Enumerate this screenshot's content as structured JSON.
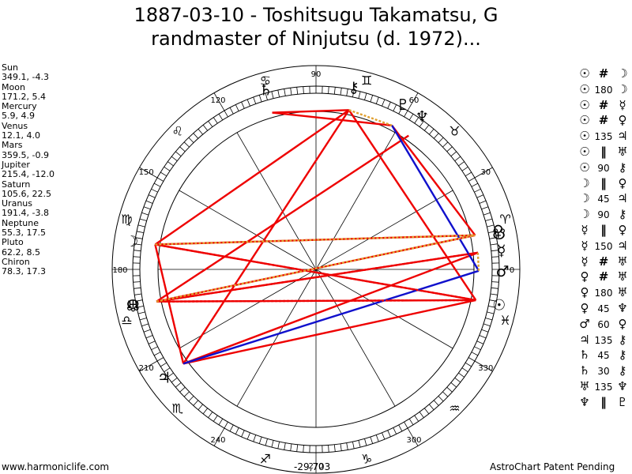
{
  "title": {
    "line1": "1887-03-10 - Toshitsugu Takamatsu, G",
    "line2": "randmaster of Ninjutsu (d. 1972)..."
  },
  "planets": [
    {
      "name": "Sun",
      "pos": "349.1, -4.3"
    },
    {
      "name": "Moon",
      "pos": "171.2, 5.4"
    },
    {
      "name": "Mercury",
      "pos": "5.9, 4.9"
    },
    {
      "name": "Venus",
      "pos": "12.1, 4.0"
    },
    {
      "name": "Mars",
      "pos": "359.5, -0.9"
    },
    {
      "name": "Jupiter",
      "pos": "215.4, -12.0"
    },
    {
      "name": "Saturn",
      "pos": "105.6, 22.5"
    },
    {
      "name": "Uranus",
      "pos": "191.4, -3.8"
    },
    {
      "name": "Neptune",
      "pos": "55.3, 17.5"
    },
    {
      "name": "Pluto",
      "pos": "62.2, 8.5"
    },
    {
      "name": "Chiron",
      "pos": "78.3, 17.3"
    }
  ],
  "aspects": [
    {
      "p1": "☉",
      "asp": "#",
      "p2": "☽"
    },
    {
      "p1": "☉",
      "asp": "180",
      "p2": "☽"
    },
    {
      "p1": "☉",
      "asp": "#",
      "p2": "☿"
    },
    {
      "p1": "☉",
      "asp": "#",
      "p2": "♀"
    },
    {
      "p1": "☉",
      "asp": "135",
      "p2": "♃"
    },
    {
      "p1": "☉",
      "asp": "‖",
      "p2": "♅"
    },
    {
      "p1": "☉",
      "asp": "90",
      "p2": "⚷"
    },
    {
      "p1": "☽",
      "asp": "‖",
      "p2": "♀"
    },
    {
      "p1": "☽",
      "asp": "45",
      "p2": "♃"
    },
    {
      "p1": "☽",
      "asp": "90",
      "p2": "⚷"
    },
    {
      "p1": "☿",
      "asp": "‖",
      "p2": "♀"
    },
    {
      "p1": "☿",
      "asp": "150",
      "p2": "♃"
    },
    {
      "p1": "☿",
      "asp": "#",
      "p2": "♅"
    },
    {
      "p1": "♀",
      "asp": "#",
      "p2": "♅"
    },
    {
      "p1": "♀",
      "asp": "180",
      "p2": "♅"
    },
    {
      "p1": "♀",
      "asp": "45",
      "p2": "♆"
    },
    {
      "p1": "♂",
      "asp": "60",
      "p2": "♀"
    },
    {
      "p1": "♃",
      "asp": "135",
      "p2": "⚷"
    },
    {
      "p1": "♄",
      "asp": "45",
      "p2": "⚷"
    },
    {
      "p1": "♄",
      "asp": "30",
      "p2": "⚷"
    },
    {
      "p1": "♅",
      "asp": "135",
      "p2": "♆"
    },
    {
      "p1": "♆",
      "asp": "‖",
      "p2": "♇"
    }
  ],
  "chart_data": {
    "type": "astrological-wheel",
    "degree_labels": [
      "0",
      "30",
      "60",
      "90",
      "120",
      "150",
      "180",
      "210",
      "240",
      "270",
      "300",
      "330"
    ],
    "signs": [
      "♈",
      "♉",
      "♊",
      "♋",
      "♌",
      "♍",
      "♎",
      "♏",
      "♐",
      "♑",
      "♒",
      "♓"
    ],
    "bodies": [
      {
        "glyph": "☉",
        "lon": 349.1,
        "color": "#000000"
      },
      {
        "glyph": "☽",
        "lon": 171.2,
        "color": "#000000"
      },
      {
        "glyph": "☿",
        "lon": 5.9,
        "color": "#000000"
      },
      {
        "glyph": "♀",
        "lon": 12.1,
        "color": "#000000"
      },
      {
        "glyph": "♂",
        "lon": 359.5,
        "color": "#000000"
      },
      {
        "glyph": "♃",
        "lon": 215.4,
        "color": "#000000"
      },
      {
        "glyph": "♄",
        "lon": 105.6,
        "color": "#000000"
      },
      {
        "glyph": "♅",
        "lon": 191.4,
        "color": "#000000"
      },
      {
        "glyph": "♆",
        "lon": 55.3,
        "color": "#000000"
      },
      {
        "glyph": "♇",
        "lon": 62.2,
        "color": "#000000"
      },
      {
        "glyph": "⚷",
        "lon": 78.3,
        "color": "#000000"
      },
      {
        "glyph": "☊",
        "lon": 191.0,
        "color": "#000000"
      },
      {
        "glyph": "☋",
        "lon": 11.0,
        "color": "#000000"
      }
    ],
    "aspect_lines": [
      {
        "a": 349.1,
        "b": 171.2,
        "color": "#ee0000",
        "style": "solid"
      },
      {
        "a": 349.1,
        "b": 78.3,
        "color": "#ee0000",
        "style": "solid"
      },
      {
        "a": 349.1,
        "b": 191.4,
        "color": "#ee0000",
        "style": "solid"
      },
      {
        "a": 349.1,
        "b": 215.4,
        "color": "#ee0000",
        "style": "solid"
      },
      {
        "a": 171.2,
        "b": 78.3,
        "color": "#ee0000",
        "style": "solid"
      },
      {
        "a": 171.2,
        "b": 12.1,
        "color": "#ee0000",
        "style": "solid"
      },
      {
        "a": 171.2,
        "b": 215.4,
        "color": "#ee0000",
        "style": "solid"
      },
      {
        "a": 215.4,
        "b": 78.3,
        "color": "#ee0000",
        "style": "solid"
      },
      {
        "a": 215.4,
        "b": 5.9,
        "color": "#ee0000",
        "style": "solid"
      },
      {
        "a": 105.6,
        "b": 78.3,
        "color": "#ee0000",
        "style": "solid"
      },
      {
        "a": 105.6,
        "b": 62.2,
        "color": "#ee0000",
        "style": "solid"
      },
      {
        "a": 62.2,
        "b": 12.1,
        "color": "#ee0000",
        "style": "solid"
      },
      {
        "a": 191.4,
        "b": 5.9,
        "color": "#ee0000",
        "style": "solid"
      },
      {
        "a": 191.4,
        "b": 12.1,
        "color": "#ee0000",
        "style": "solid"
      },
      {
        "a": 191.4,
        "b": 55.3,
        "color": "#ee0000",
        "style": "solid"
      },
      {
        "a": 62.2,
        "b": 359.5,
        "color": "#1010cc",
        "style": "solid"
      },
      {
        "a": 215.4,
        "b": 359.5,
        "color": "#1010cc",
        "style": "solid"
      },
      {
        "a": 171.2,
        "b": 349.1,
        "color": "#ee0000",
        "style": "dotted"
      },
      {
        "a": 191.4,
        "b": 349.1,
        "color": "#ee0000",
        "style": "dotted"
      },
      {
        "a": 191.4,
        "b": 5.9,
        "color": "#ee0000",
        "style": "dotted"
      },
      {
        "a": 171.2,
        "b": 12.1,
        "color": "#e0a030",
        "style": "dotted"
      },
      {
        "a": 191.4,
        "b": 12.1,
        "color": "#e0a030",
        "style": "dotted"
      },
      {
        "a": 78.3,
        "b": 62.2,
        "color": "#e0a030",
        "style": "dotted"
      },
      {
        "a": 5.9,
        "b": 359.5,
        "color": "#e0a030",
        "style": "dotted"
      }
    ]
  },
  "footer": {
    "left": "www.harmoniclife.com",
    "center": "-29,703",
    "right": "AstroChart Patent Pending"
  }
}
